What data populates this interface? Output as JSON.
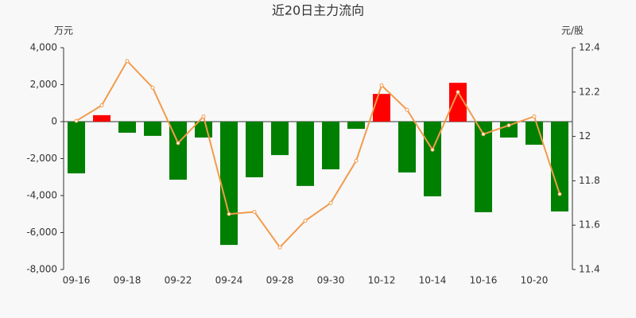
{
  "chart_data": {
    "type": "bar_line",
    "title": "近20日主力流向",
    "y_unit": "万元",
    "y2_unit": "元/股",
    "categories": [
      "09-16",
      null,
      "09-18",
      null,
      "09-22",
      null,
      "09-24",
      null,
      "09-28",
      null,
      "09-30",
      null,
      "10-12",
      null,
      "10-14",
      null,
      "10-16",
      null,
      "10-20",
      null
    ],
    "series": [
      {
        "type": "bar",
        "up_color": "#ff0000",
        "down_color": "#008000",
        "values": [
          -2800,
          350,
          -600,
          -770,
          -3140,
          -860,
          -6670,
          -3010,
          -1810,
          -3480,
          -2580,
          -390,
          1500,
          -2750,
          -4040,
          2100,
          -4900,
          -860,
          -1250,
          -4860
        ]
      },
      {
        "type": "line",
        "axis": "y2",
        "color": "#f29b4c",
        "values": [
          12.07,
          12.14,
          12.34,
          12.22,
          11.97,
          12.09,
          11.65,
          11.66,
          11.5,
          11.62,
          11.7,
          11.89,
          12.23,
          12.12,
          11.94,
          12.2,
          12.01,
          12.05,
          12.09,
          11.74
        ]
      }
    ],
    "ylim": [
      -8000,
      4000
    ],
    "yticks": [
      {
        "value": -8000,
        "label": "-8,000"
      },
      {
        "value": -6000,
        "label": "-6,000"
      },
      {
        "value": -4000,
        "label": "-4,000"
      },
      {
        "value": -2000,
        "label": "-2,000"
      },
      0,
      {
        "value": 2000,
        "label": "2,000"
      },
      {
        "value": 4000,
        "label": "4,000"
      }
    ],
    "y2lim": [
      11.4,
      12.4
    ],
    "y2ticks": [
      11.4,
      11.6,
      11.8,
      12,
      12.2,
      12.4
    ]
  }
}
